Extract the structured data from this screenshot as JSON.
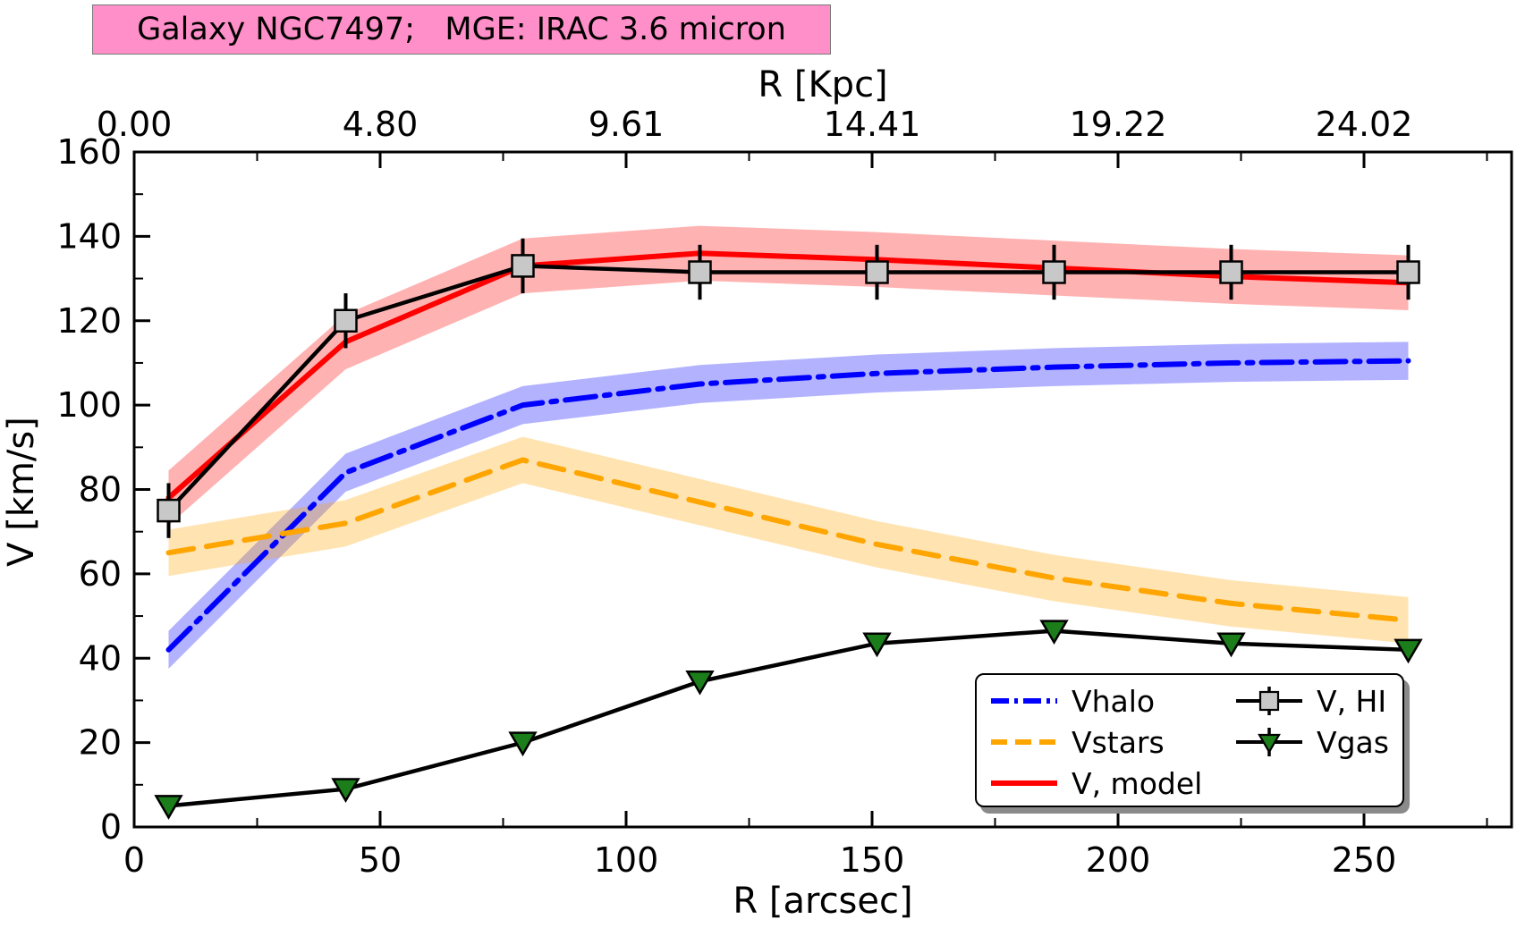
{
  "title_box": {
    "text": "Galaxy NGC7497;   MGE: IRAC 3.6 micron",
    "background": "#ff8fc8",
    "border_color": "#7a7a7a"
  },
  "chart_data": {
    "type": "line",
    "title": "Galaxy NGC7497;   MGE: IRAC 3.6 micron",
    "xlabel": "R [arcsec]",
    "top_xlabel": "R [Kpc]",
    "ylabel": "V [km/s]",
    "xlim": [
      0,
      280
    ],
    "ylim": [
      0,
      160
    ],
    "grid": false,
    "bottom_axis": {
      "major_ticks": [
        0,
        50,
        100,
        150,
        200,
        250
      ],
      "major_tick_labels": [
        "0",
        "50",
        "100",
        "150",
        "200",
        "250"
      ],
      "minor_ticks": [
        25,
        75,
        125,
        175,
        225,
        275
      ]
    },
    "top_axis": {
      "major_tick_positions_arcsec": [
        0,
        50,
        100,
        150,
        200,
        250
      ],
      "major_tick_labels": [
        "0.00",
        "4.80",
        "9.61",
        "14.41",
        "19.22",
        "24.02"
      ],
      "minor_ticks": [
        25,
        75,
        125,
        175,
        225,
        275
      ]
    },
    "y_axis": {
      "major_ticks": [
        0,
        20,
        40,
        60,
        80,
        100,
        120,
        140,
        160
      ],
      "minor_ticks": [
        10,
        30,
        50,
        70,
        90,
        110,
        130,
        150
      ]
    },
    "x": [
      7,
      43,
      79,
      115,
      151,
      187,
      223,
      259
    ],
    "series": [
      {
        "name": "Vhalo",
        "kind": "band-line",
        "color": "#0000ff",
        "linestyle": "dashdot",
        "band_halfwidth": 4.5,
        "band_opacity": 0.3,
        "values": [
          42,
          84,
          100,
          105,
          107.5,
          109,
          110,
          110.5
        ]
      },
      {
        "name": "Vstars",
        "kind": "band-line",
        "color": "#ffa500",
        "linestyle": "dashed",
        "band_halfwidth": 5.5,
        "band_opacity": 0.3,
        "values": [
          65,
          72,
          87,
          77,
          67,
          59,
          53,
          49
        ]
      },
      {
        "name": "V, model",
        "kind": "band-line",
        "color": "#ff0000",
        "linestyle": "solid",
        "band_halfwidth": 6.5,
        "band_opacity": 0.3,
        "values": [
          78,
          115,
          133,
          136,
          134.5,
          132.5,
          130.5,
          129
        ]
      },
      {
        "name": "V, HI",
        "kind": "errorbar-line",
        "color": "#000000",
        "marker": "square",
        "marker_fill": "#c8c8c8",
        "yerr": 6.5,
        "values": [
          75,
          120,
          133,
          131.5,
          131.5,
          131.5,
          131.5,
          131.5
        ]
      },
      {
        "name": "Vgas",
        "kind": "marker-line",
        "color": "#000000",
        "marker": "triangle-down",
        "marker_fill": "#1b7e1b",
        "values": [
          5,
          9,
          20,
          34.5,
          43.5,
          46.5,
          43.5,
          42
        ]
      }
    ],
    "legend": {
      "position": "lower right",
      "columns": [
        [
          "Vhalo",
          "Vstars",
          "V, model"
        ],
        [
          "V, HI",
          "Vgas"
        ]
      ]
    }
  }
}
